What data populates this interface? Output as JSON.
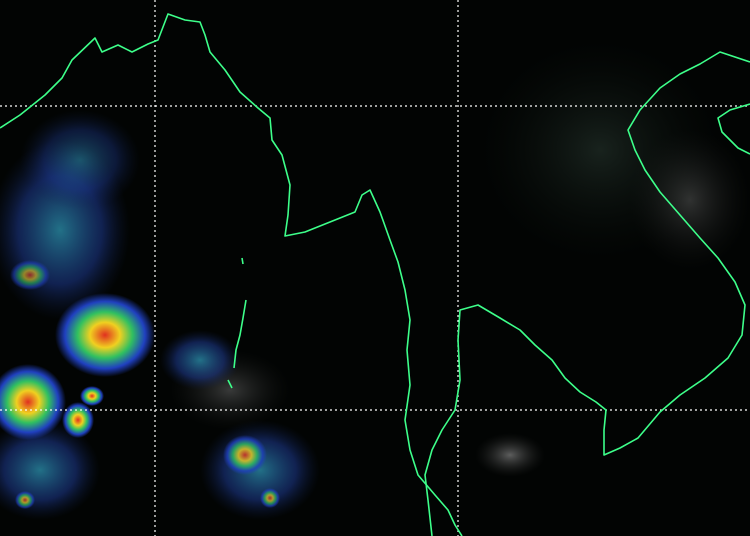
{
  "map": {
    "kind": "satellite-infrared-enhanced",
    "colors": {
      "background": "#020403",
      "coastline": "#3dff8a",
      "gridline": "#ffffff",
      "cloud_cold": "#2040c0",
      "cloud_mid": "#30c060",
      "cloud_warm": "#f0d020",
      "cloud_hot": "#e03020"
    },
    "gridlines": true
  }
}
